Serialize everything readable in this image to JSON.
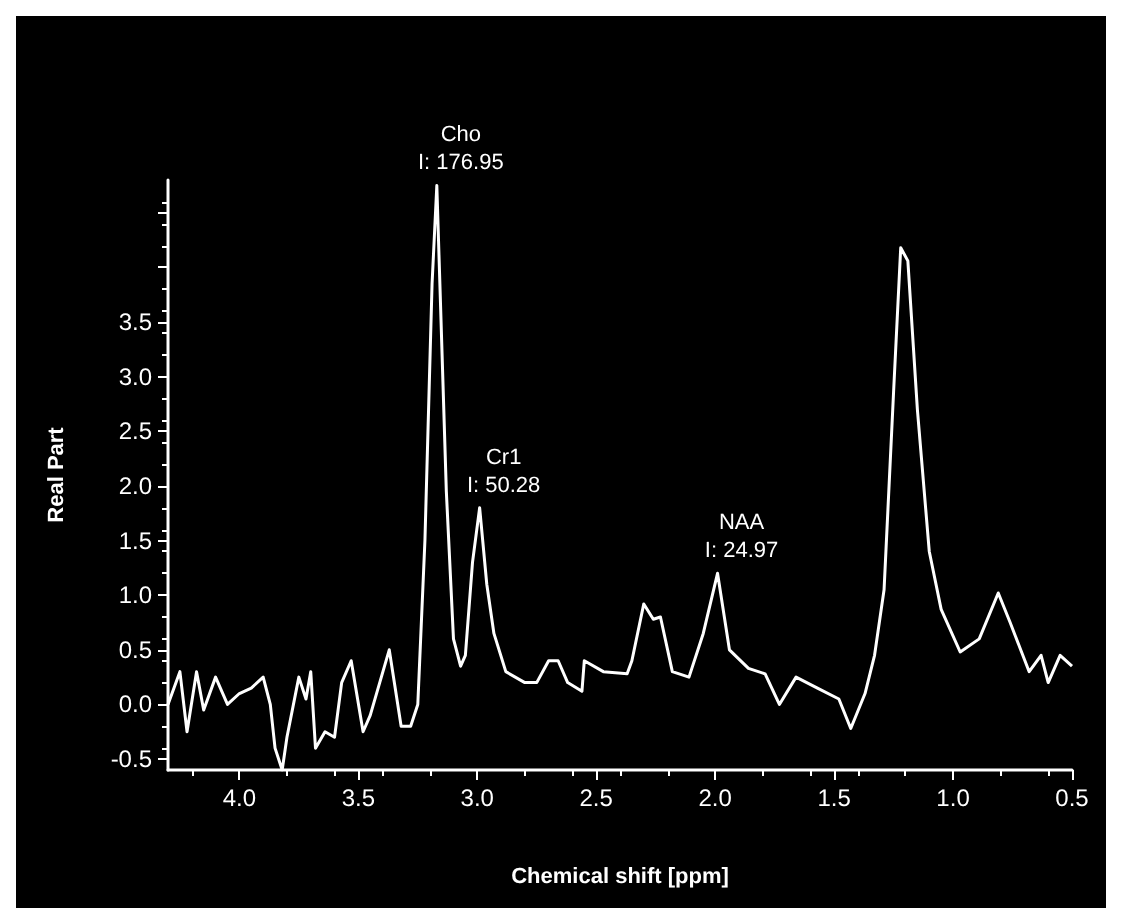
{
  "chart_data": {
    "type": "line",
    "xlabel": "Chemical shift [ppm]",
    "ylabel": "Real Part",
    "xlim": [
      4.3,
      0.5
    ],
    "ylim": [
      -0.6,
      4.8
    ],
    "xticks": [
      {
        "value": 4.0,
        "label": "4.0"
      },
      {
        "value": 3.5,
        "label": "3.5"
      },
      {
        "value": 3.0,
        "label": "3.0"
      },
      {
        "value": 2.5,
        "label": "2.5"
      },
      {
        "value": 2.0,
        "label": "2.0"
      },
      {
        "value": 1.5,
        "label": "1.5"
      },
      {
        "value": 1.0,
        "label": "1.0"
      },
      {
        "value": 0.5,
        "label": "0.5"
      }
    ],
    "yticks": [
      {
        "value": -0.5,
        "label": "-0.5"
      },
      {
        "value": 0,
        "label": "0.0"
      },
      {
        "value": 0.5,
        "label": "0.5"
      },
      {
        "value": 1.0,
        "label": "1.0"
      },
      {
        "value": 1.5,
        "label": "1.5"
      },
      {
        "value": 2.0,
        "label": "2.0"
      },
      {
        "value": 2.5,
        "label": "2.5"
      },
      {
        "value": 3.0,
        "label": "3.0"
      },
      {
        "value": 3.5,
        "label": "3.5"
      },
      {
        "value": 4.0,
        "label": null
      },
      {
        "value": 4.5,
        "label": null
      }
    ],
    "series": [
      {
        "color": "#ffffff",
        "x": [
          4.3,
          4.25,
          4.22,
          4.18,
          4.15,
          4.1,
          4.05,
          4.0,
          3.95,
          3.9,
          3.87,
          3.85,
          3.82,
          3.8,
          3.75,
          3.72,
          3.7,
          3.68,
          3.64,
          3.6,
          3.57,
          3.53,
          3.48,
          3.45,
          3.37,
          3.32,
          3.28,
          3.25,
          3.22,
          3.19,
          3.17,
          3.13,
          3.1,
          3.07,
          3.05,
          3.02,
          2.99,
          2.96,
          2.93,
          2.88,
          2.8,
          2.75,
          2.7,
          2.66,
          2.62,
          2.56,
          2.55,
          2.47,
          2.37,
          2.35,
          2.3,
          2.26,
          2.23,
          2.18,
          2.11,
          2.05,
          1.99,
          1.94,
          1.86,
          1.79,
          1.73,
          1.66,
          1.57,
          1.48,
          1.43,
          1.37,
          1.33,
          1.29,
          1.25,
          1.22,
          1.19,
          1.15,
          1.1,
          1.05,
          0.97,
          0.89,
          0.81,
          0.76,
          0.68,
          0.63,
          0.6,
          0.55,
          0.5
        ],
        "values": [
          0.0,
          0.3,
          -0.25,
          0.3,
          -0.05,
          0.25,
          0.0,
          0.1,
          0.15,
          0.25,
          0.0,
          -0.4,
          -0.6,
          -0.3,
          0.25,
          0.05,
          0.3,
          -0.4,
          -0.25,
          -0.3,
          0.2,
          0.4,
          -0.25,
          -0.1,
          0.5,
          -0.2,
          -0.2,
          0.0,
          1.5,
          3.85,
          4.75,
          1.95,
          0.6,
          0.35,
          0.45,
          1.3,
          1.8,
          1.1,
          0.65,
          0.3,
          0.2,
          0.2,
          0.4,
          0.4,
          0.2,
          0.12,
          0.4,
          0.3,
          0.28,
          0.4,
          0.92,
          0.78,
          0.8,
          0.3,
          0.25,
          0.65,
          1.2,
          0.5,
          0.33,
          0.28,
          0.0,
          0.25,
          0.15,
          0.05,
          -0.22,
          0.1,
          0.45,
          1.05,
          2.86,
          4.18,
          4.06,
          2.7,
          1.4,
          0.87,
          0.48,
          0.6,
          1.02,
          0.75,
          0.3,
          0.45,
          0.2,
          0.45,
          0.35
        ]
      }
    ],
    "annotations": [
      {
        "text": "Cho\nI: 176.95",
        "x": 3.17,
        "y": 4.75
      },
      {
        "text": "Cr1\nI: 50.28",
        "x": 2.99,
        "y": 1.8
      },
      {
        "text": "NAA\nI: 24.97",
        "x": 1.99,
        "y": 1.2
      }
    ],
    "grid": false,
    "marker": "none",
    "line_style": "solid"
  }
}
